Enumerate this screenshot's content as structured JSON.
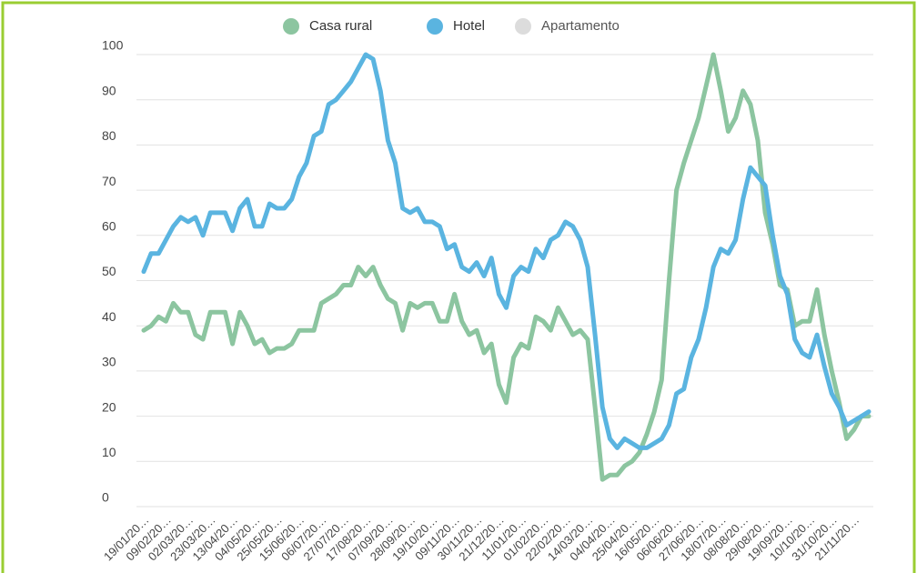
{
  "chart_data": {
    "type": "line",
    "categories": [
      "19/01/20…",
      null,
      null,
      "09/02/20…",
      null,
      null,
      "02/03/20…",
      null,
      null,
      "23/03/20…",
      null,
      null,
      "13/04/20…",
      null,
      null,
      "04/05/20…",
      null,
      null,
      "25/05/20…",
      null,
      null,
      "15/06/20…",
      null,
      null,
      "06/07/20…",
      null,
      null,
      "27/07/20…",
      null,
      null,
      "17/08/20…",
      null,
      null,
      "07/09/20…",
      null,
      null,
      "28/09/20…",
      null,
      null,
      "19/10/20…",
      null,
      null,
      "09/11/20…",
      null,
      null,
      "30/11/20…",
      null,
      null,
      "21/12/20…",
      null,
      null,
      "11/01/20…",
      null,
      null,
      "01/02/20…",
      null,
      null,
      "22/02/20…",
      null,
      null,
      "14/03/20…",
      null,
      null,
      "04/04/20…",
      null,
      null,
      "25/04/20…",
      null,
      null,
      "16/05/20…",
      null,
      null,
      "06/06/20…",
      null,
      null,
      "27/06/20…",
      null,
      null,
      "18/07/20…",
      null,
      null,
      "08/08/20…",
      null,
      null,
      "29/08/20…",
      null,
      null,
      "19/09/20…",
      null,
      null,
      "10/10/20…",
      null,
      null,
      "31/10/20…",
      null,
      null,
      "21/11/20…",
      null,
      null
    ],
    "series": [
      {
        "name": "Casa rural",
        "color": "#8cc5a0",
        "values": [
          39,
          40,
          42,
          41,
          45,
          43,
          43,
          38,
          37,
          43,
          43,
          43,
          36,
          43,
          40,
          36,
          37,
          34,
          35,
          35,
          36,
          39,
          39,
          39,
          45,
          46,
          47,
          49,
          49,
          53,
          51,
          53,
          49,
          46,
          45,
          39,
          45,
          44,
          45,
          45,
          41,
          41,
          47,
          41,
          38,
          39,
          34,
          36,
          27,
          23,
          33,
          36,
          35,
          42,
          41,
          39,
          44,
          41,
          38,
          39,
          37,
          22,
          6,
          7,
          7,
          9,
          10,
          12,
          16,
          21,
          28,
          50,
          70,
          76,
          81,
          86,
          93,
          100,
          92,
          83,
          86,
          92,
          89,
          81,
          65,
          58,
          49,
          48,
          40,
          41,
          41,
          48,
          38,
          30,
          23,
          15,
          17,
          20,
          20
        ]
      },
      {
        "name": "Hotel",
        "color": "#5ab4e0",
        "values": [
          52,
          56,
          56,
          59,
          62,
          64,
          63,
          64,
          60,
          65,
          65,
          65,
          61,
          66,
          68,
          62,
          62,
          67,
          66,
          66,
          68,
          73,
          76,
          82,
          83,
          89,
          90,
          92,
          94,
          97,
          100,
          99,
          92,
          81,
          76,
          66,
          65,
          66,
          63,
          63,
          62,
          57,
          58,
          53,
          52,
          54,
          51,
          55,
          47,
          44,
          51,
          53,
          52,
          57,
          55,
          59,
          60,
          63,
          62,
          59,
          53,
          38,
          22,
          15,
          13,
          15,
          14,
          13,
          13,
          14,
          15,
          18,
          25,
          26,
          33,
          37,
          44,
          53,
          57,
          56,
          59,
          68,
          75,
          73,
          71,
          60,
          51,
          47,
          37,
          34,
          33,
          38,
          31,
          25,
          22,
          18,
          19,
          20,
          21
        ]
      },
      {
        "name": "Apartamento",
        "color": "#dcdcdc",
        "hidden": true
      }
    ],
    "ylim": [
      0,
      100
    ],
    "yticks": [
      0,
      10,
      20,
      30,
      40,
      50,
      60,
      70,
      80,
      90,
      100
    ],
    "grid": true,
    "legend": "top"
  }
}
